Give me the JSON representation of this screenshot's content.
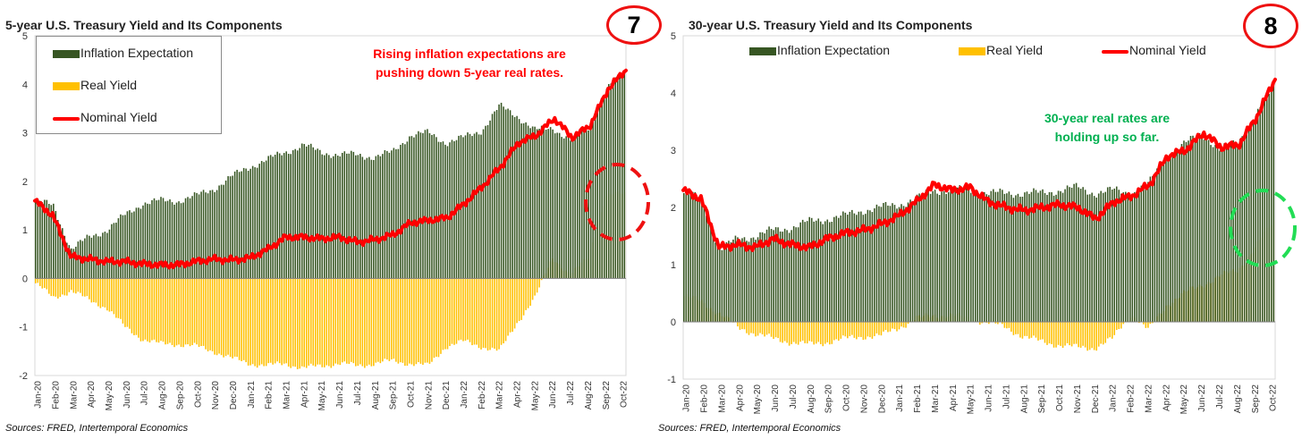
{
  "colors": {
    "inflation": "#375623",
    "real": "#ffc000",
    "nominal": "#ff0000",
    "circle1": "#ee1111",
    "circle2": "#22dd55",
    "anno1": "#ff0000",
    "anno2": "#00b050"
  },
  "panel1": {
    "title": "5-year U.S. Treasury Yield and Its Components",
    "badge": "7",
    "source": "Sources: FRED, Intertemporal Economics",
    "annotation_line1": "Rising inflation expectations are",
    "annotation_line2": "pushing down 5-year real rates.",
    "legend": [
      "Inflation Expectation",
      "Real Yield",
      "Nominal Yield"
    ]
  },
  "panel2": {
    "title": "30-year U.S. Treasury Yield and Its Components",
    "badge": "8",
    "source": "Sources: FRED, Intertemporal Economics",
    "annotation_line1": "30-year real rates are",
    "annotation_line2": "holding up so far.",
    "legend": [
      "Inflation Expectation",
      "Real Yield",
      "Nominal Yield"
    ]
  },
  "chart_data": [
    {
      "type": "bar",
      "title": "5-year U.S. Treasury Yield and Its Components",
      "x_ticks": [
        "Jan-20",
        "Feb-20",
        "Mar-20",
        "Apr-20",
        "May-20",
        "Jun-20",
        "Jul-20",
        "Aug-20",
        "Sep-20",
        "Oct-20",
        "Nov-20",
        "Dec-20",
        "Jan-21",
        "Feb-21",
        "Mar-21",
        "Apr-21",
        "May-21",
        "Jun-21",
        "Jul-21",
        "Aug-21",
        "Sep-21",
        "Oct-21",
        "Nov-21",
        "Dec-21",
        "Jan-22",
        "Feb-22",
        "Mar-22",
        "Apr-22",
        "May-22",
        "Jun-22",
        "Jul-22",
        "Aug-22",
        "Sep-22",
        "Oct-22"
      ],
      "ylim": [
        -2,
        5
      ],
      "y_ticks": [
        -2,
        -1,
        0,
        1,
        2,
        3,
        4,
        5
      ],
      "grid": false,
      "legend": "top-left",
      "series": [
        {
          "name": "Inflation Expectation",
          "kind": "bar",
          "x": [
            "Jan-20",
            "Feb-20",
            "Mar-20",
            "Apr-20",
            "May-20",
            "Jun-20",
            "Jul-20",
            "Aug-20",
            "Sep-20",
            "Oct-20",
            "Nov-20",
            "Dec-20",
            "Jan-21",
            "Feb-21",
            "Mar-21",
            "Apr-21",
            "May-21",
            "Jun-21",
            "Jul-21",
            "Aug-21",
            "Sep-21",
            "Oct-21",
            "Nov-21",
            "Dec-21",
            "Jan-22",
            "Feb-22",
            "Mar-22",
            "Apr-22",
            "May-22",
            "Jun-22",
            "Jul-22",
            "Aug-22",
            "Sep-22",
            "Oct-22"
          ],
          "values": [
            1.6,
            1.5,
            0.6,
            0.85,
            1.0,
            1.3,
            1.55,
            1.6,
            1.6,
            1.7,
            1.85,
            2.1,
            2.3,
            2.45,
            2.6,
            2.75,
            2.6,
            2.55,
            2.55,
            2.5,
            2.6,
            2.95,
            3.0,
            2.8,
            2.9,
            3.05,
            3.55,
            3.35,
            3.05,
            3.1,
            2.85,
            3.1,
            3.9,
            4.25
          ]
        },
        {
          "name": "Real Yield",
          "kind": "bar",
          "x": [
            "Jan-20",
            "Feb-20",
            "Mar-20",
            "Apr-20",
            "May-20",
            "Jun-20",
            "Jul-20",
            "Aug-20",
            "Sep-20",
            "Oct-20",
            "Nov-20",
            "Dec-20",
            "Jan-21",
            "Feb-21",
            "Mar-21",
            "Apr-21",
            "May-21",
            "Jun-21",
            "Jul-21",
            "Aug-21",
            "Sep-21",
            "Oct-21",
            "Nov-21",
            "Dec-21",
            "Jan-22",
            "Feb-22",
            "Mar-22",
            "Apr-22",
            "May-22",
            "Jun-22",
            "Jul-22",
            "Aug-22",
            "Sep-22",
            "Oct-22"
          ],
          "values": [
            -0.1,
            -0.4,
            -0.25,
            -0.45,
            -0.6,
            -1.0,
            -1.25,
            -1.35,
            -1.35,
            -1.4,
            -1.5,
            -1.65,
            -1.75,
            -1.8,
            -1.75,
            -1.85,
            -1.8,
            -1.75,
            -1.8,
            -1.75,
            -1.7,
            -1.75,
            -1.8,
            -1.4,
            -1.3,
            -1.4,
            -1.5,
            -0.9,
            -0.4,
            0.45,
            0.05,
            0.45,
            1.7,
            1.75
          ]
        },
        {
          "name": "Nominal Yield",
          "kind": "line",
          "x": [
            "Jan-20",
            "Feb-20",
            "Mar-20",
            "Apr-20",
            "May-20",
            "Jun-20",
            "Jul-20",
            "Aug-20",
            "Sep-20",
            "Oct-20",
            "Nov-20",
            "Dec-20",
            "Jan-21",
            "Feb-21",
            "Mar-21",
            "Apr-21",
            "May-21",
            "Jun-21",
            "Jul-21",
            "Aug-21",
            "Sep-21",
            "Oct-21",
            "Nov-21",
            "Dec-21",
            "Jan-22",
            "Feb-22",
            "Mar-22",
            "Apr-22",
            "May-22",
            "Jun-22",
            "Jul-22",
            "Aug-22",
            "Sep-22",
            "Oct-22"
          ],
          "values": [
            1.6,
            1.3,
            0.45,
            0.4,
            0.35,
            0.35,
            0.3,
            0.28,
            0.28,
            0.35,
            0.4,
            0.38,
            0.42,
            0.6,
            0.85,
            0.85,
            0.82,
            0.85,
            0.75,
            0.8,
            0.9,
            1.15,
            1.2,
            1.25,
            1.55,
            1.9,
            2.3,
            2.8,
            2.95,
            3.3,
            2.9,
            3.15,
            3.9,
            4.3
          ]
        }
      ]
    },
    {
      "type": "bar",
      "title": "30-year U.S. Treasury Yield and Its Components",
      "x_ticks": [
        "Jan-20",
        "Feb-20",
        "Mar-20",
        "Apr-20",
        "May-20",
        "Jun-20",
        "Jul-20",
        "Aug-20",
        "Sep-20",
        "Oct-20",
        "Nov-20",
        "Dec-20",
        "Jan-21",
        "Feb-21",
        "Mar-21",
        "Apr-21",
        "May-21",
        "Jun-21",
        "Jul-21",
        "Aug-21",
        "Sep-21",
        "Oct-21",
        "Nov-21",
        "Dec-21",
        "Jan-22",
        "Feb-22",
        "Mar-22",
        "Apr-22",
        "May-22",
        "Jun-22",
        "Jul-22",
        "Aug-22",
        "Sep-22",
        "Oct-22"
      ],
      "ylim": [
        -1,
        5
      ],
      "y_ticks": [
        -1,
        0,
        1,
        2,
        3,
        4,
        5
      ],
      "grid": false,
      "legend": "top",
      "series": [
        {
          "name": "Inflation Expectation",
          "kind": "bar",
          "x": [
            "Jan-20",
            "Feb-20",
            "Mar-20",
            "Apr-20",
            "May-20",
            "Jun-20",
            "Jul-20",
            "Aug-20",
            "Sep-20",
            "Oct-20",
            "Nov-20",
            "Dec-20",
            "Jan-21",
            "Feb-21",
            "Mar-21",
            "Apr-21",
            "May-21",
            "Jun-21",
            "Jul-21",
            "Aug-21",
            "Sep-21",
            "Oct-21",
            "Nov-21",
            "Dec-21",
            "Jan-22",
            "Feb-22",
            "Mar-22",
            "Apr-22",
            "May-22",
            "Jun-22",
            "Jul-22",
            "Aug-22",
            "Sep-22",
            "Oct-22"
          ],
          "values": [
            2.25,
            2.15,
            1.25,
            1.45,
            1.5,
            1.6,
            1.65,
            1.75,
            1.8,
            1.85,
            1.95,
            2.0,
            2.05,
            2.15,
            2.3,
            2.3,
            2.3,
            2.25,
            2.25,
            2.25,
            2.25,
            2.3,
            2.35,
            2.25,
            2.3,
            2.25,
            2.4,
            2.9,
            3.1,
            3.3,
            3.0,
            3.15,
            3.6,
            4.1
          ]
        },
        {
          "name": "Real Yield",
          "kind": "bar",
          "x": [
            "Jan-20",
            "Feb-20",
            "Mar-20",
            "Apr-20",
            "May-20",
            "Jun-20",
            "Jul-20",
            "Aug-20",
            "Sep-20",
            "Oct-20",
            "Nov-20",
            "Dec-20",
            "Jan-21",
            "Feb-21",
            "Mar-21",
            "Apr-21",
            "May-21",
            "Jun-21",
            "Jul-21",
            "Aug-21",
            "Sep-21",
            "Oct-21",
            "Nov-21",
            "Dec-21",
            "Jan-22",
            "Feb-22",
            "Mar-22",
            "Apr-22",
            "May-22",
            "Jun-22",
            "Jul-22",
            "Aug-22",
            "Sep-22",
            "Oct-22"
          ],
          "values": [
            0.45,
            0.35,
            0.15,
            -0.1,
            -0.2,
            -0.3,
            -0.35,
            -0.4,
            -0.35,
            -0.3,
            -0.25,
            -0.25,
            -0.1,
            0.05,
            0.12,
            0.12,
            0.05,
            0.0,
            -0.1,
            -0.25,
            -0.35,
            -0.4,
            -0.45,
            -0.45,
            -0.3,
            0.15,
            -0.15,
            0.3,
            0.5,
            0.65,
            0.8,
            0.9,
            1.3,
            1.75
          ]
        },
        {
          "name": "Nominal Yield",
          "kind": "line",
          "x": [
            "Jan-20",
            "Feb-20",
            "Mar-20",
            "Apr-20",
            "May-20",
            "Jun-20",
            "Jul-20",
            "Aug-20",
            "Sep-20",
            "Oct-20",
            "Nov-20",
            "Dec-20",
            "Jan-21",
            "Feb-21",
            "Mar-21",
            "Apr-21",
            "May-21",
            "Jun-21",
            "Jul-21",
            "Aug-21",
            "Sep-21",
            "Oct-21",
            "Nov-21",
            "Dec-21",
            "Jan-22",
            "Feb-22",
            "Mar-22",
            "Apr-22",
            "May-22",
            "Jun-22",
            "Jul-22",
            "Aug-22",
            "Sep-22",
            "Oct-22"
          ],
          "values": [
            2.3,
            2.15,
            1.3,
            1.35,
            1.3,
            1.45,
            1.35,
            1.3,
            1.45,
            1.55,
            1.6,
            1.7,
            1.85,
            2.1,
            2.4,
            2.3,
            2.35,
            2.1,
            2.0,
            1.95,
            2.0,
            2.05,
            2.0,
            1.8,
            2.1,
            2.2,
            2.4,
            2.9,
            3.0,
            3.3,
            3.05,
            3.1,
            3.6,
            4.25
          ]
        }
      ]
    }
  ]
}
